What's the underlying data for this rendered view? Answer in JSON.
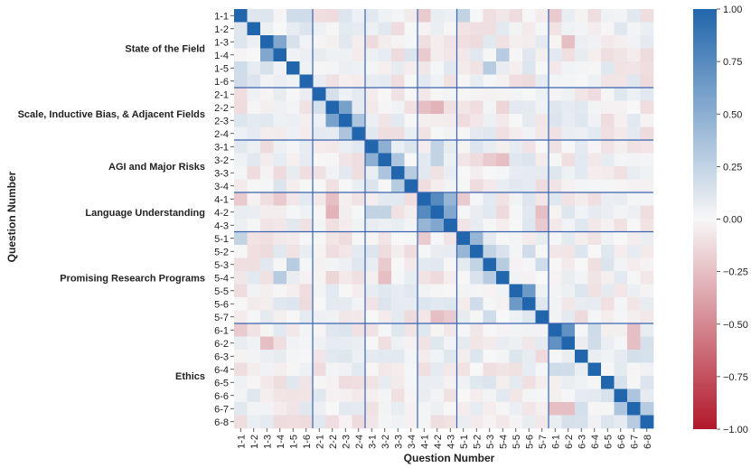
{
  "chart_data": {
    "type": "heatmap",
    "title": "",
    "xlabel": "Question Number",
    "ylabel": "Question Number",
    "labels": [
      "1-1",
      "1-2",
      "1-3",
      "1-4",
      "1-5",
      "1-6",
      "2-1",
      "2-2",
      "2-3",
      "2-4",
      "3-1",
      "3-2",
      "3-3",
      "3-4",
      "4-1",
      "4-2",
      "4-3",
      "5-1",
      "5-2",
      "5-3",
      "5-4",
      "5-5",
      "5-6",
      "5-7",
      "6-1",
      "6-2",
      "6-3",
      "6-4",
      "6-5",
      "6-6",
      "6-7",
      "6-8"
    ],
    "groups": [
      {
        "name": "State of the Field",
        "size": 6
      },
      {
        "name": "Scale, Inductive Bias, & Adjacent Fields",
        "size": 4
      },
      {
        "name": "AGI and Major Risks",
        "size": 4
      },
      {
        "name": "Language Understanding",
        "size": 3
      },
      {
        "name": "Promising Research Programs",
        "size": 7
      },
      {
        "name": "Ethics",
        "size": 8
      }
    ],
    "vmin": -1.0,
    "vmax": 1.0,
    "colorbar_ticks": [
      "1.00",
      "0.75",
      "0.50",
      "0.25",
      "0.00",
      "−0.25",
      "−0.50",
      "−0.75",
      "−1.00"
    ],
    "colorscale": {
      "low": "#b2182b",
      "mid": "#f7f7f7",
      "high": "#2166ac"
    },
    "strong_correlations": [
      {
        "a": "1-3",
        "b": "1-4",
        "value": 0.55
      },
      {
        "a": "2-2",
        "b": "2-3",
        "value": 0.6
      },
      {
        "a": "2-3",
        "b": "2-4",
        "value": 0.35
      },
      {
        "a": "3-1",
        "b": "3-2",
        "value": 0.5
      },
      {
        "a": "3-2",
        "b": "3-3",
        "value": 0.35
      },
      {
        "a": "3-3",
        "b": "3-4",
        "value": 0.3
      },
      {
        "a": "4-1",
        "b": "4-2",
        "value": 0.75
      },
      {
        "a": "4-1",
        "b": "4-3",
        "value": 0.45
      },
      {
        "a": "4-2",
        "b": "4-3",
        "value": 0.55
      },
      {
        "a": "5-1",
        "b": "5-2",
        "value": 0.45
      },
      {
        "a": "5-5",
        "b": "5-6",
        "value": 0.65
      },
      {
        "a": "5-2",
        "b": "5-3",
        "value": 0.25
      },
      {
        "a": "5-3",
        "b": "5-4",
        "value": 0.3
      },
      {
        "a": "6-1",
        "b": "6-2",
        "value": 0.7
      },
      {
        "a": "6-6",
        "b": "6-7",
        "value": 0.35
      },
      {
        "a": "6-7",
        "b": "6-8",
        "value": 0.3
      },
      {
        "a": "1-4",
        "b": "5-4",
        "value": 0.3
      },
      {
        "a": "1-5",
        "b": "5-3",
        "value": 0.3
      },
      {
        "a": "1-1",
        "b": "5-1",
        "value": 0.25
      },
      {
        "a": "3-1",
        "b": "4-2",
        "value": 0.25
      },
      {
        "a": "3-2",
        "b": "4-2",
        "value": 0.25
      },
      {
        "a": "2-2",
        "b": "4-2",
        "value": -0.3
      },
      {
        "a": "2-2",
        "b": "4-1",
        "value": -0.25
      },
      {
        "a": "4-1",
        "b": "5-1",
        "value": -0.2
      },
      {
        "a": "4-2",
        "b": "5-7",
        "value": -0.25
      },
      {
        "a": "6-2",
        "b": "6-7",
        "value": -0.25
      },
      {
        "a": "6-1",
        "b": "6-7",
        "value": -0.25
      },
      {
        "a": "1-3",
        "b": "6-2",
        "value": -0.25
      },
      {
        "a": "1-1",
        "b": "6-1",
        "value": -0.2
      },
      {
        "a": "3-2",
        "b": "5-3",
        "value": -0.2
      },
      {
        "a": "3-2",
        "b": "5-4",
        "value": -0.25
      },
      {
        "a": "1-1",
        "b": "4-1",
        "value": -0.2
      },
      {
        "a": "1-4",
        "b": "4-1",
        "value": -0.2
      },
      {
        "a": "2-2",
        "b": "5-4",
        "value": -0.15
      },
      {
        "a": "4-3",
        "b": "5-7",
        "value": -0.2
      }
    ]
  }
}
